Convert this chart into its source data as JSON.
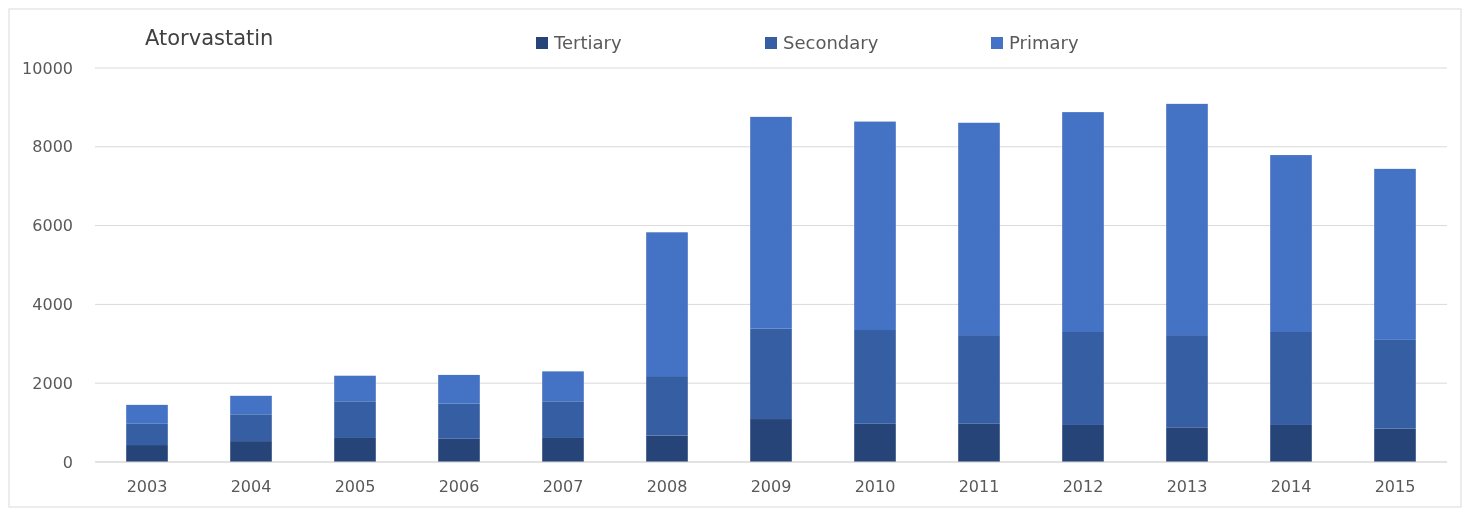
{
  "chart_data": {
    "type": "bar",
    "title": "Atorvastatin",
    "stacked": true,
    "grid": "y",
    "legend": "top",
    "categories": [
      "2003",
      "2004",
      "2005",
      "2006",
      "2007",
      "2008",
      "2009",
      "2010",
      "2011",
      "2012",
      "2013",
      "2014",
      "2015"
    ],
    "series": [
      {
        "name": "Tertiary",
        "color": "#264478",
        "values": [
          430,
          530,
          610,
          590,
          610,
          670,
          1090,
          970,
          970,
          940,
          880,
          940,
          850
        ]
      },
      {
        "name": "Secondary",
        "color": "#365fa3",
        "values": [
          540,
          680,
          930,
          890,
          930,
          1510,
          2300,
          2380,
          2250,
          2360,
          2340,
          2360,
          2250
        ]
      },
      {
        "name": "Primary",
        "color": "#4472c4",
        "values": [
          480,
          470,
          650,
          730,
          760,
          3650,
          5370,
          5290,
          5390,
          5580,
          5870,
          4490,
          4340
        ]
      }
    ],
    "ylim": [
      0,
      10000
    ],
    "yticks": [
      0,
      2000,
      4000,
      6000,
      8000,
      10000
    ]
  }
}
